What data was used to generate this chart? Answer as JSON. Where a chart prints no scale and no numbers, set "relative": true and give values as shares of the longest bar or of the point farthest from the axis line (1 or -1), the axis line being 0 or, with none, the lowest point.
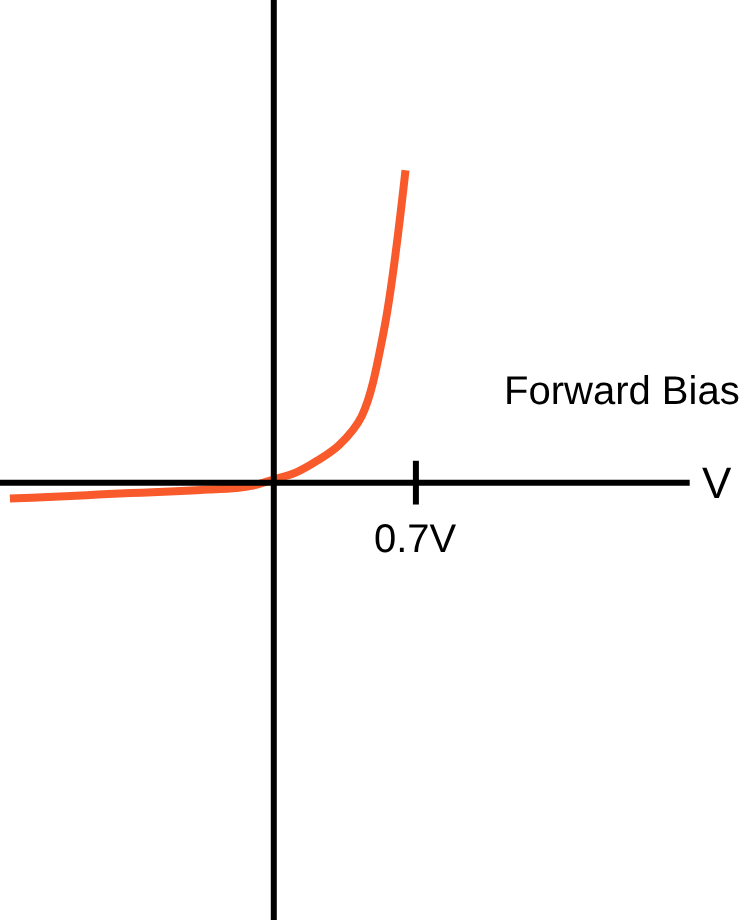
{
  "chart_data": {
    "type": "line",
    "relative": true,
    "xlabel": "V",
    "annotations": [
      "Forward Bias",
      "0.7V"
    ],
    "categories": [
      null,
      null,
      null,
      null,
      null,
      null,
      null,
      null,
      null,
      null,
      null,
      null,
      null,
      null,
      null,
      null,
      null,
      null,
      null,
      null,
      null,
      null,
      null,
      null,
      null,
      null,
      null,
      null,
      null,
      null,
      null,
      null
    ],
    "series": [
      {
        "color": "#f95a2c",
        "values": [
          -0.051,
          -0.048,
          -0.045,
          -0.042,
          -0.038,
          -0.035,
          -0.032,
          -0.029,
          -0.026,
          -0.022,
          -0.019,
          -0.01,
          0.01,
          0.032,
          0.071,
          0.122,
          0.212,
          0.481,
          1.0,
          null,
          null,
          null,
          null,
          null,
          null,
          null,
          null,
          null,
          null,
          null,
          null,
          null
        ]
      }
    ],
    "legend": false,
    "marker": "none",
    "line_style": "solid"
  }
}
